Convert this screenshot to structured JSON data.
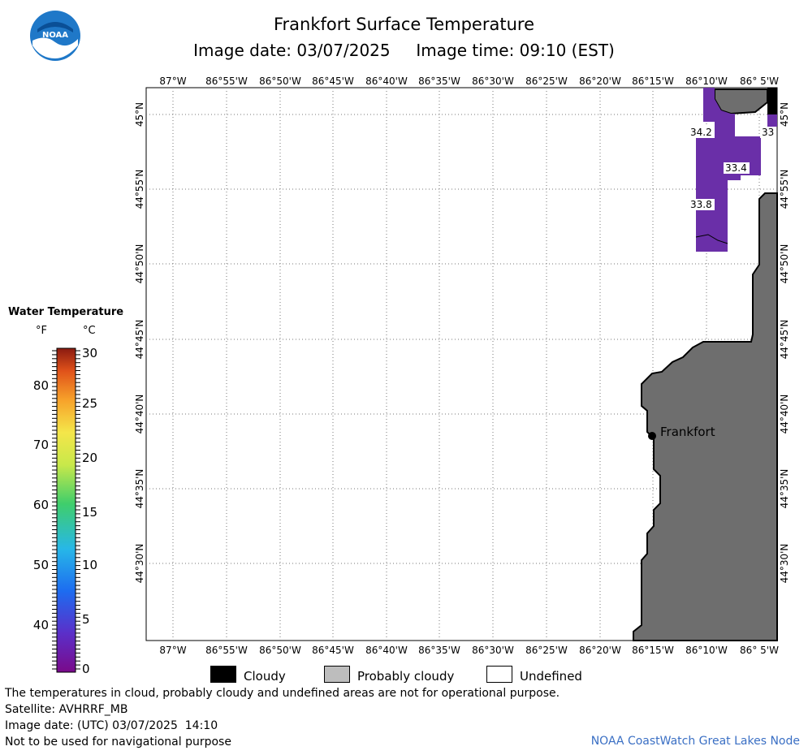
{
  "header": {
    "title": "Frankfort Surface Temperature",
    "subtitle": "Image date: 03/07/2025     Image time: 09:10 (EST)"
  },
  "logo": {
    "text": "NOAA",
    "icon": "noaa-logo-icon"
  },
  "map": {
    "lon_labels": [
      "87°W",
      "86°55'W",
      "86°50'W",
      "86°45'W",
      "86°40'W",
      "86°35'W",
      "86°30'W",
      "86°25'W",
      "86°20'W",
      "86°15'W",
      "86°10'W",
      "86° 5'W"
    ],
    "lat_labels": [
      "45°N",
      "44°55'N",
      "44°50'N",
      "44°45'N",
      "44°40'N",
      "44°35'N",
      "44°30'N"
    ],
    "city": {
      "name": "Frankfort"
    },
    "temperature_labels": [
      "34.2",
      "33",
      "33.4",
      "33.8"
    ],
    "colors": {
      "land": "#6e6e6e",
      "cloudy": "#000000",
      "probably_cloudy": "#bdbdbd",
      "water_temp": "#6a2fa8"
    }
  },
  "scale": {
    "title": "Water Temperature",
    "unit_f": "°F",
    "unit_c": "°C",
    "f_ticks": [
      "80",
      "70",
      "60",
      "50",
      "40"
    ],
    "c_ticks": [
      "30",
      "25",
      "20",
      "15",
      "10",
      "5",
      "0"
    ]
  },
  "legend": {
    "cloudy": "Cloudy",
    "probably_cloudy": "Probably cloudy",
    "undefined": "Undefined"
  },
  "footer": {
    "line1": "The temperatures in cloud, probably cloudy and undefined areas are not for operational purpose.",
    "line2": "Satellite: AVHRRF_MB",
    "line3": "Image date: (UTC) 03/07/2025  14:10",
    "line4": "Not to be used for navigational purpose",
    "credit": "NOAA CoastWatch Great Lakes Node"
  }
}
